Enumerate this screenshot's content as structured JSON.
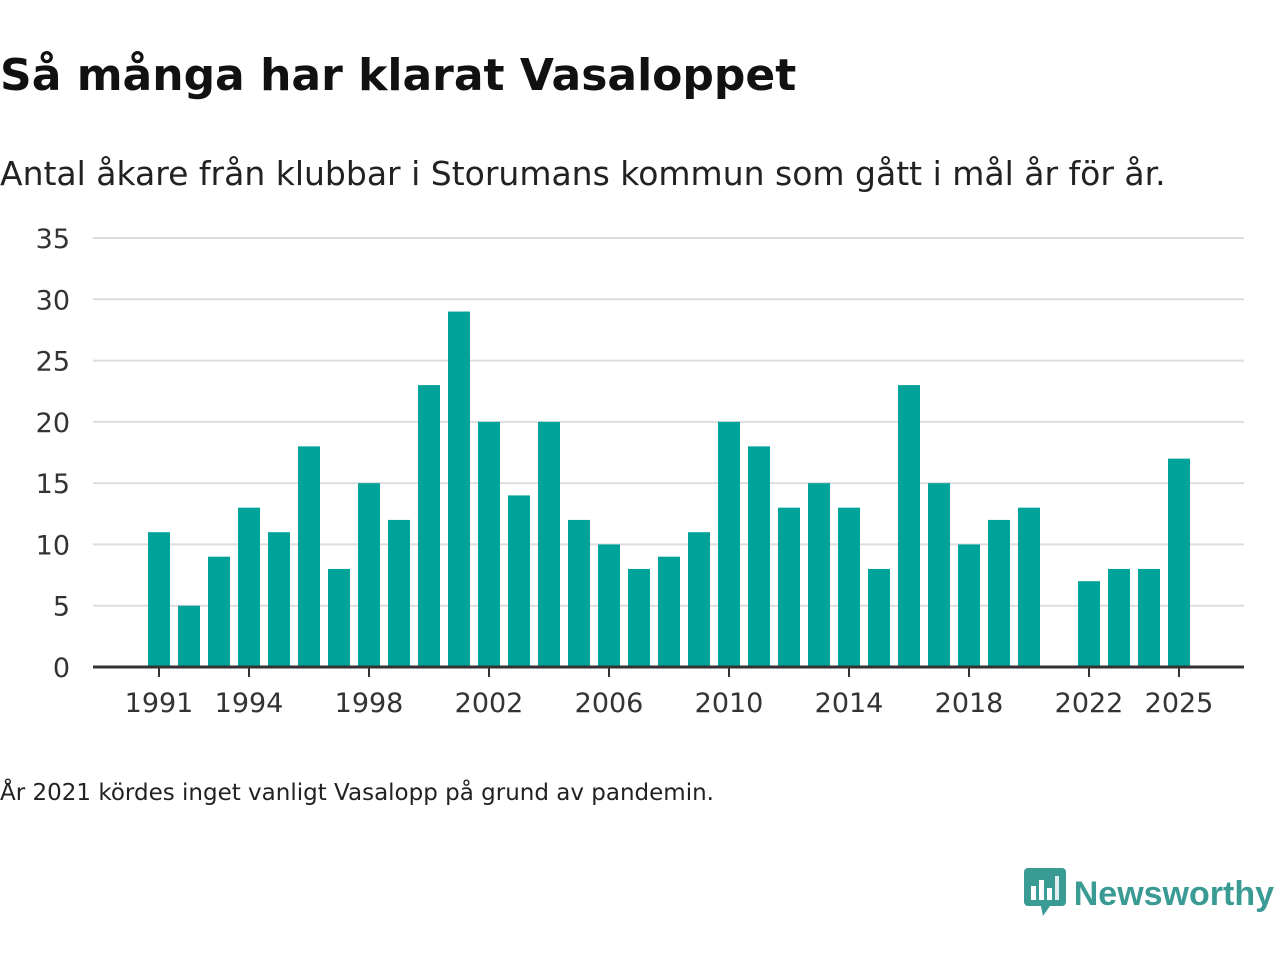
{
  "title": "Så många har klarat Vasaloppet",
  "subtitle": "Antal åkare från klubbar i Storumans kommun som gått i mål år för år.",
  "note": "År 2021 kördes inget vanligt Vasalopp på grund av pandemin.",
  "brand": {
    "name": "Newsworthy",
    "icon": "newsworthy-logo-icon",
    "color": "#3a9a94"
  },
  "colors": {
    "bar": "#00a39a",
    "grid": "#dddddd",
    "axis": "#333333"
  },
  "chart_data": {
    "type": "bar",
    "title": "Så många har klarat Vasaloppet",
    "xlabel": "",
    "ylabel": "",
    "ylim": [
      0,
      35
    ],
    "yticks": [
      0,
      5,
      10,
      15,
      20,
      25,
      30,
      35
    ],
    "grid": true,
    "categories": [
      1991,
      1992,
      1993,
      1994,
      1995,
      1996,
      1997,
      1998,
      1999,
      2000,
      2001,
      2002,
      2003,
      2004,
      2005,
      2006,
      2007,
      2008,
      2009,
      2010,
      2011,
      2012,
      2013,
      2014,
      2015,
      2016,
      2017,
      2018,
      2019,
      2020,
      2021,
      2022,
      2023,
      2024,
      2025
    ],
    "values": [
      11,
      5,
      9,
      13,
      11,
      18,
      8,
      15,
      12,
      23,
      29,
      20,
      14,
      20,
      12,
      10,
      8,
      9,
      11,
      20,
      18,
      13,
      15,
      13,
      8,
      23,
      15,
      10,
      12,
      13,
      null,
      7,
      8,
      8,
      17
    ],
    "xtick_labels": [
      "1991",
      "1994",
      "1998",
      "2002",
      "2006",
      "2010",
      "2014",
      "2018",
      "2022",
      "2025"
    ]
  }
}
